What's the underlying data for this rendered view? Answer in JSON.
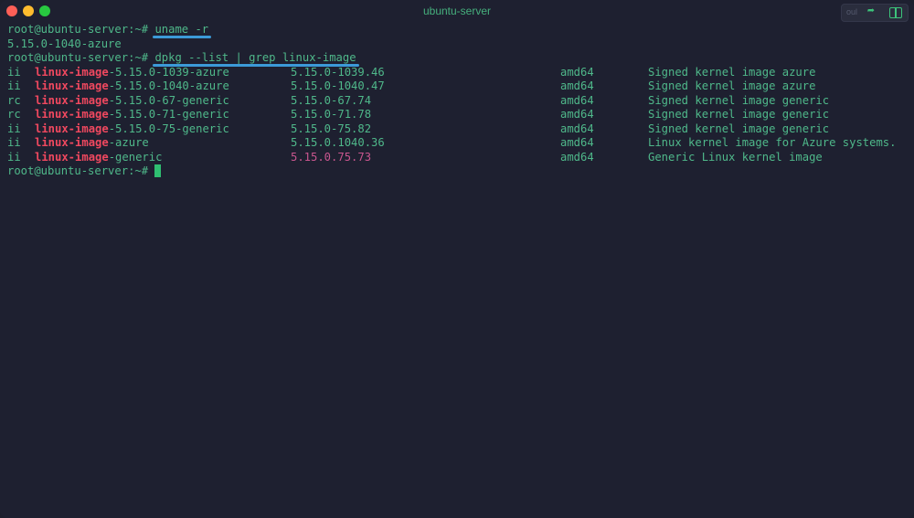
{
  "window": {
    "title": "ubuntu-server",
    "colors": {
      "close": "#fe5f57",
      "minimize": "#febc2e",
      "maximize": "#28c840"
    }
  },
  "toolbar": {
    "icons": [
      "search-input-icon",
      "share-icon",
      "split-pane-icon"
    ],
    "search_text": "oul"
  },
  "terminal": {
    "prompt": "root@ubuntu-server:~# ",
    "cmd1": "uname -r",
    "out1": "5.15.0-1040-azure",
    "cmd2": "dpkg --list | grep linux-image",
    "rows": [
      {
        "status": "ii",
        "pkg_prefix": "linux-image",
        "pkg_suffix": "-5.15.0-1039-azure",
        "version": "5.15.0-1039.46",
        "arch": "amd64",
        "desc": "Signed kernel image azure"
      },
      {
        "status": "ii",
        "pkg_prefix": "linux-image",
        "pkg_suffix": "-5.15.0-1040-azure",
        "version": "5.15.0-1040.47",
        "arch": "amd64",
        "desc": "Signed kernel image azure"
      },
      {
        "status": "rc",
        "pkg_prefix": "linux-image",
        "pkg_suffix": "-5.15.0-67-generic",
        "version": "5.15.0-67.74",
        "arch": "amd64",
        "desc": "Signed kernel image generic"
      },
      {
        "status": "rc",
        "pkg_prefix": "linux-image",
        "pkg_suffix": "-5.15.0-71-generic",
        "version": "5.15.0-71.78",
        "arch": "amd64",
        "desc": "Signed kernel image generic"
      },
      {
        "status": "ii",
        "pkg_prefix": "linux-image",
        "pkg_suffix": "-5.15.0-75-generic",
        "version": "5.15.0-75.82",
        "arch": "amd64",
        "desc": "Signed kernel image generic"
      },
      {
        "status": "ii",
        "pkg_prefix": "linux-image",
        "pkg_suffix": "-azure",
        "version": "5.15.0.1040.36",
        "arch": "amd64",
        "desc": "Linux kernel image for Azure systems."
      },
      {
        "status": "ii",
        "pkg_prefix": "linux-image",
        "pkg_suffix": "-generic",
        "version": "5.15.0.75.73",
        "arch": "amd64",
        "desc": "Generic Linux kernel image",
        "version_highlight": true
      }
    ]
  }
}
